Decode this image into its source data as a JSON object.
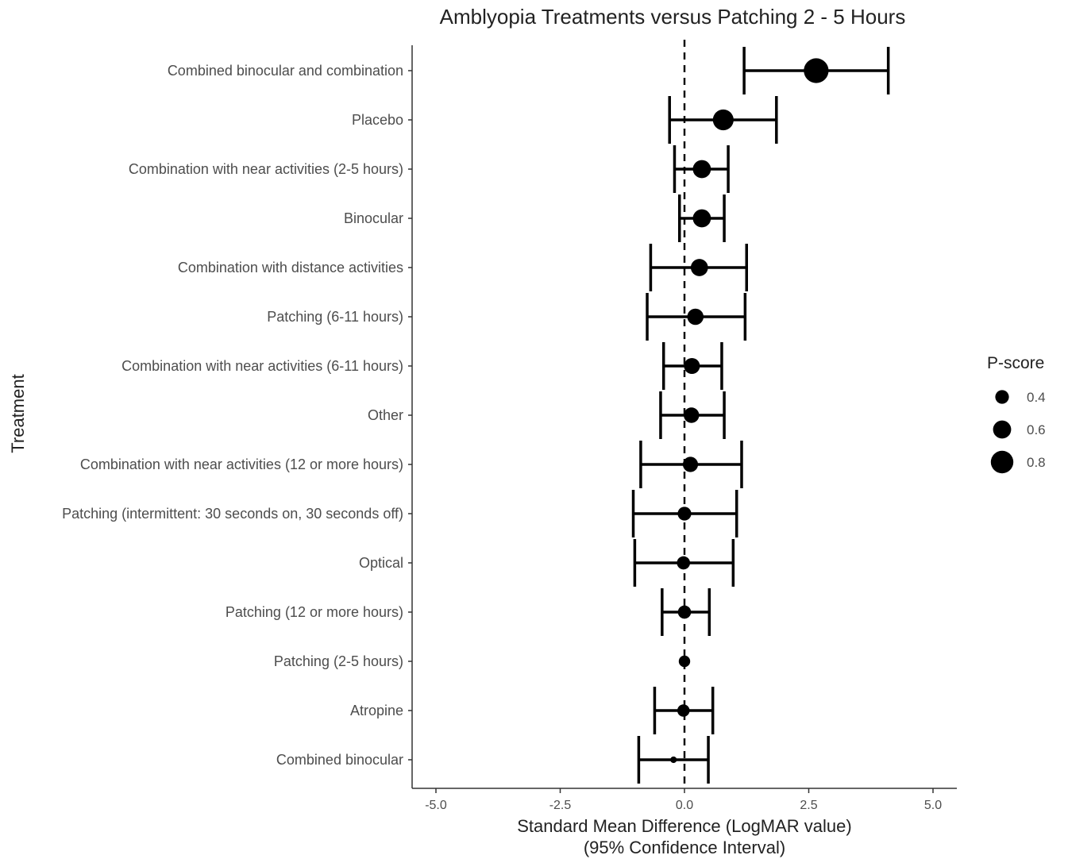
{
  "chart_data": {
    "type": "scatter",
    "title": "Amblyopia Treatments versus Patching 2 - 5 Hours",
    "xlabel_line1": "Standard Mean Difference (LogMAR value)",
    "xlabel_line2": "(95% Confidence Interval)",
    "ylabel": "Treatment",
    "xlim": [
      -5.5,
      5.5
    ],
    "xticks": [
      -5.0,
      -2.5,
      0.0,
      2.5,
      5.0
    ],
    "xtick_labels": [
      "-5.0",
      "-2.5",
      "0.0",
      "2.5",
      "5.0"
    ],
    "reference_line": 0,
    "grid": false,
    "legend": {
      "title": "P-score",
      "placement": "right",
      "entries": [
        {
          "label": "0.4",
          "value": 0.4
        },
        {
          "label": "0.6",
          "value": 0.6
        },
        {
          "label": "0.8",
          "value": 0.8
        }
      ]
    },
    "categories": [
      "Combined binocular and combination",
      "Placebo",
      "Combination with near activities (2-5 hours)",
      "Binocular",
      "Combination with distance activities",
      "Patching (6-11 hours)",
      "Combination with near activities (6-11 hours)",
      "Other",
      "Combination with near activities (12 or more hours)",
      "Patching (intermittent: 30 seconds on, 30 seconds off)",
      "Optical",
      "Patching (12 or more hours)",
      "Patching (2-5 hours)",
      "Atropine",
      "Combined binocular"
    ],
    "estimates": [
      2.65,
      0.78,
      0.35,
      0.35,
      0.3,
      0.22,
      0.15,
      0.14,
      0.12,
      0.0,
      -0.02,
      0.0,
      0.0,
      -0.02,
      -0.22
    ],
    "lower": [
      1.2,
      -0.3,
      -0.2,
      -0.1,
      -0.68,
      -0.75,
      -0.42,
      -0.48,
      -0.88,
      -1.03,
      -1.0,
      -0.45,
      0.0,
      -0.6,
      -0.92
    ],
    "upper": [
      4.1,
      1.85,
      0.88,
      0.8,
      1.25,
      1.22,
      0.75,
      0.8,
      1.15,
      1.05,
      0.98,
      0.5,
      0.0,
      0.57,
      0.48
    ],
    "p_scores": [
      0.9,
      0.72,
      0.6,
      0.6,
      0.56,
      0.52,
      0.5,
      0.48,
      0.47,
      0.4,
      0.38,
      0.38,
      0.3,
      0.34,
      0.08
    ]
  }
}
